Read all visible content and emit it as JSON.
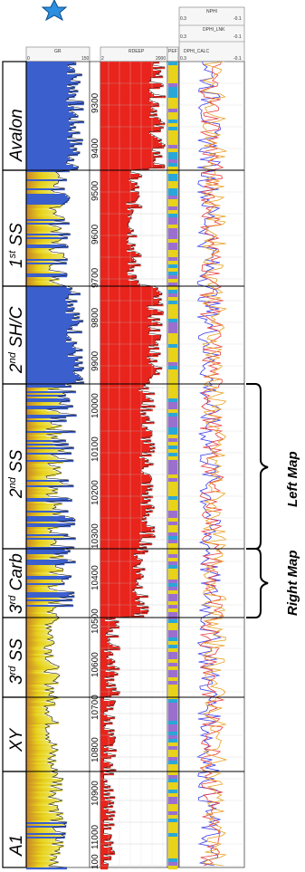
{
  "header": {
    "track1_name": "GR",
    "track1_min": "0",
    "track1_max": "150",
    "track2_name": "RDEEP",
    "track2_min": "2",
    "track2_max": "2000",
    "track3_name": "PEF",
    "track4_curves": [
      {
        "name": "NPHI",
        "min": "0.3",
        "max": "-0.1"
      },
      {
        "name": "DPHI_LNK",
        "min": "0.3",
        "max": "-0.1"
      },
      {
        "name": "DPHI_CALC",
        "min": "0.3",
        "max": "-0.1"
      }
    ]
  },
  "zones": [
    {
      "main": "Avalon",
      "sup": "",
      "rest": ""
    },
    {
      "main": "1",
      "sup": "st",
      "rest": " SS"
    },
    {
      "main": "2",
      "sup": "nd",
      "rest": " SH/C"
    },
    {
      "main": "2",
      "sup": "nd",
      "rest": " SS"
    },
    {
      "main": "3",
      "sup": "rd",
      "rest": " Carb"
    },
    {
      "main": "3",
      "sup": "rd",
      "rest": " SS"
    },
    {
      "main": "XY",
      "sup": "",
      "rest": ""
    },
    {
      "main": "A1",
      "sup": "",
      "rest": ""
    }
  ],
  "depths": [
    "9300",
    "9400",
    "9500",
    "9600",
    "9700",
    "9800",
    "9900",
    "10000",
    "10100",
    "10200",
    "10300",
    "10400",
    "10500",
    "10600",
    "10700",
    "10800",
    "10900",
    "11000",
    "100"
  ],
  "map_labels": {
    "left": "Left Map",
    "right": "Right Map"
  },
  "colors": {
    "gr_sand": "#e8d21a",
    "gr_shale_blue": "#3b5fcc",
    "gr_brown": "#c7862a",
    "resistivity": "#e8241c",
    "pef_purple": "#9a6fd0",
    "pef_cyan": "#29a7d8",
    "pef_yellow": "#e8d21a",
    "nphi": "#3a3ae8",
    "dphi": "#e83a3a",
    "star": "#2c8fe0"
  },
  "icons": {
    "top": "star-icon"
  }
}
